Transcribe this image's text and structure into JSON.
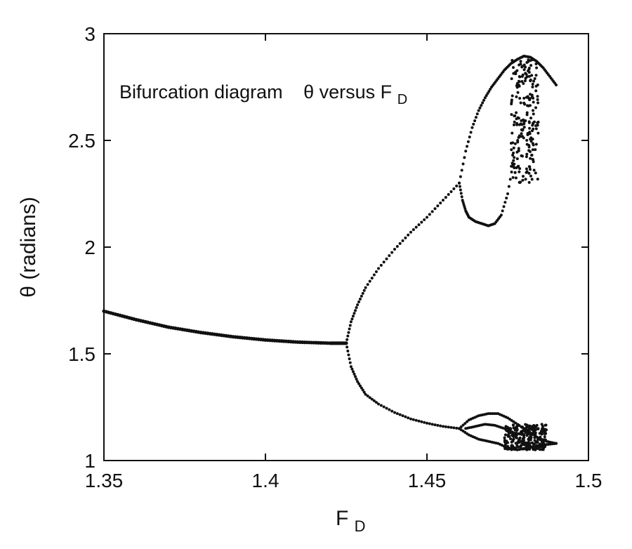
{
  "chart_data": {
    "type": "scatter",
    "title": "",
    "annotation": {
      "text_main": "Bifurcation diagram",
      "text_theta": "θ versus F",
      "text_sub": "D"
    },
    "xlabel": {
      "main": "F",
      "sub": "D"
    },
    "ylabel": "θ (radians)",
    "xlim": [
      1.35,
      1.5
    ],
    "ylim": [
      1.0,
      3.0
    ],
    "x_ticks": [
      {
        "value": 1.35,
        "label": "1.35"
      },
      {
        "value": 1.4,
        "label": "1.4"
      },
      {
        "value": 1.45,
        "label": "1.45"
      },
      {
        "value": 1.5,
        "label": "1.5"
      }
    ],
    "y_ticks": [
      {
        "value": 1.0,
        "label": "1"
      },
      {
        "value": 1.5,
        "label": "1.5"
      },
      {
        "value": 2.0,
        "label": "2"
      },
      {
        "value": 2.5,
        "label": "2.5"
      },
      {
        "value": 3.0,
        "label": "3"
      }
    ],
    "grid": false,
    "series": [
      {
        "x": [
          1.35,
          1.36,
          1.37,
          1.38,
          1.39,
          1.4,
          1.41,
          1.42,
          1.425
        ],
        "y": [
          1.7,
          1.66,
          1.625,
          1.6,
          1.58,
          1.565,
          1.555,
          1.55,
          1.55
        ]
      },
      {
        "x": [
          1.425,
          1.4265,
          1.4285,
          1.431,
          1.435,
          1.44,
          1.445,
          1.45,
          1.455,
          1.46
        ],
        "y": [
          1.55,
          1.65,
          1.73,
          1.81,
          1.9,
          1.99,
          2.07,
          2.14,
          2.22,
          2.3
        ]
      },
      {
        "x": [
          1.425,
          1.4265,
          1.4285,
          1.431,
          1.435,
          1.44,
          1.445,
          1.45,
          1.455,
          1.46
        ],
        "y": [
          1.55,
          1.44,
          1.37,
          1.31,
          1.265,
          1.225,
          1.195,
          1.175,
          1.16,
          1.15
        ]
      },
      {
        "x": [
          1.46,
          1.461,
          1.462,
          1.463,
          1.465,
          1.467,
          1.469,
          1.471,
          1.473,
          1.475,
          1.477
        ],
        "y": [
          2.3,
          2.22,
          2.17,
          2.14,
          2.12,
          2.11,
          2.1,
          2.11,
          2.15,
          2.25,
          2.42
        ]
      },
      {
        "x": [
          1.46,
          1.462,
          1.464,
          1.466,
          1.468,
          1.47,
          1.472,
          1.474,
          1.476,
          1.478,
          1.48,
          1.482,
          1.484,
          1.486,
          1.488,
          1.49
        ],
        "y": [
          2.3,
          2.45,
          2.56,
          2.64,
          2.7,
          2.75,
          2.79,
          2.83,
          2.86,
          2.88,
          2.895,
          2.89,
          2.87,
          2.84,
          2.8,
          2.76
        ]
      },
      {
        "x": [
          1.46,
          1.463,
          1.466,
          1.469,
          1.472,
          1.475,
          1.478,
          1.481,
          1.484,
          1.487,
          1.49
        ],
        "y": [
          1.15,
          1.19,
          1.21,
          1.22,
          1.22,
          1.2,
          1.17,
          1.14,
          1.11,
          1.09,
          1.08
        ]
      },
      {
        "x": [
          1.46,
          1.463,
          1.466,
          1.469,
          1.472,
          1.475,
          1.478,
          1.481,
          1.484,
          1.487,
          1.49
        ],
        "y": [
          1.15,
          1.12,
          1.1,
          1.09,
          1.08,
          1.06,
          1.05,
          1.06,
          1.07,
          1.075,
          1.08
        ]
      },
      {
        "x": [
          1.462,
          1.465,
          1.468,
          1.471,
          1.474,
          1.477,
          1.48
        ],
        "y": [
          1.15,
          1.16,
          1.17,
          1.165,
          1.15,
          1.13,
          1.12
        ]
      },
      {
        "x_range": [
          1.476,
          1.4845
        ],
        "y_range": [
          2.3,
          2.88
        ],
        "count": 220
      },
      {
        "x_range": [
          1.474,
          1.487
        ],
        "y_range": [
          1.05,
          1.17
        ],
        "count": 260
      }
    ]
  }
}
